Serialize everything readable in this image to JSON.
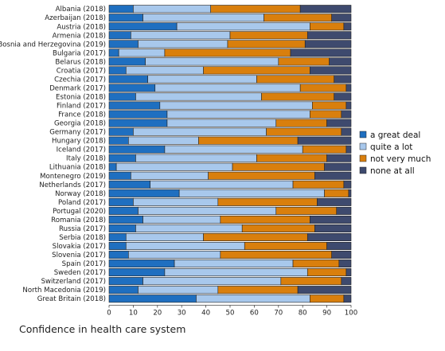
{
  "caption": "Confidence in health care system",
  "chart_data": {
    "type": "bar",
    "orientation": "horizontal",
    "stacked": true,
    "title": "",
    "xlabel": "",
    "ylabel": "",
    "xlim": [
      0,
      100
    ],
    "xticks": [
      0,
      10,
      20,
      30,
      40,
      50,
      60,
      70,
      80,
      90,
      100
    ],
    "grid": false,
    "legend_position": "right",
    "categories": [
      "Albania (2018)",
      "Azerbaijan (2018)",
      "Austria (2018)",
      "Armenia (2018)",
      "Bosnia and Herzegovina (2019)",
      "Bulgaria (2017)",
      "Belarus (2018)",
      "Croatia (2017)",
      "Czechia (2017)",
      "Denmark (2017)",
      "Estonia (2018)",
      "Finland (2017)",
      "France (2018)",
      "Georgia (2018)",
      "Germany (2017)",
      "Hungary (2018)",
      "Iceland (2017)",
      "Italy (2018)",
      "Lithuania (2018)",
      "Montenegro (2019)",
      "Netherlands (2017)",
      "Norway (2018)",
      "Poland (2017)",
      "Portugal (2020)",
      "Romania (2018)",
      "Russia (2017)",
      "Serbia (2018)",
      "Slovakia (2017)",
      "Slovenia (2017)",
      "Spain (2017)",
      "Sweden (2017)",
      "Switzerland (2017)",
      "North Macedonia (2019)",
      "Great Britain (2018)"
    ],
    "series": [
      {
        "name": "a great deal",
        "color": "#1f6fc0",
        "values": [
          10,
          14,
          28,
          9,
          12,
          4,
          15,
          7,
          16,
          19,
          11,
          21,
          24,
          24,
          10,
          8,
          23,
          11,
          3,
          9,
          17,
          29,
          10,
          12,
          14,
          11,
          7,
          7,
          8,
          27,
          23,
          14,
          12,
          36
        ]
      },
      {
        "name": "quite a lot",
        "color": "#a8c8ec",
        "values": [
          32,
          50,
          55,
          41,
          37,
          19,
          55,
          32,
          45,
          60,
          52,
          63,
          59,
          45,
          55,
          29,
          57,
          50,
          48,
          32,
          59,
          60,
          35,
          57,
          32,
          44,
          32,
          49,
          38,
          49,
          59,
          57,
          33,
          47
        ]
      },
      {
        "name": "not very much",
        "color": "#d97f0d",
        "values": [
          37,
          28,
          14,
          32,
          32,
          52,
          21,
          44,
          32,
          19,
          30,
          14,
          13,
          21,
          31,
          41,
          18,
          29,
          38,
          44,
          21,
          10,
          41,
          25,
          37,
          30,
          43,
          34,
          46,
          19,
          16,
          25,
          33,
          14
        ]
      },
      {
        "name": "none at all",
        "color": "#3e4a6e",
        "values": [
          21,
          8,
          3,
          18,
          19,
          25,
          9,
          17,
          7,
          2,
          7,
          2,
          4,
          10,
          4,
          22,
          2,
          10,
          11,
          15,
          3,
          1,
          14,
          6,
          17,
          15,
          18,
          10,
          8,
          5,
          2,
          4,
          22,
          3
        ]
      }
    ]
  }
}
